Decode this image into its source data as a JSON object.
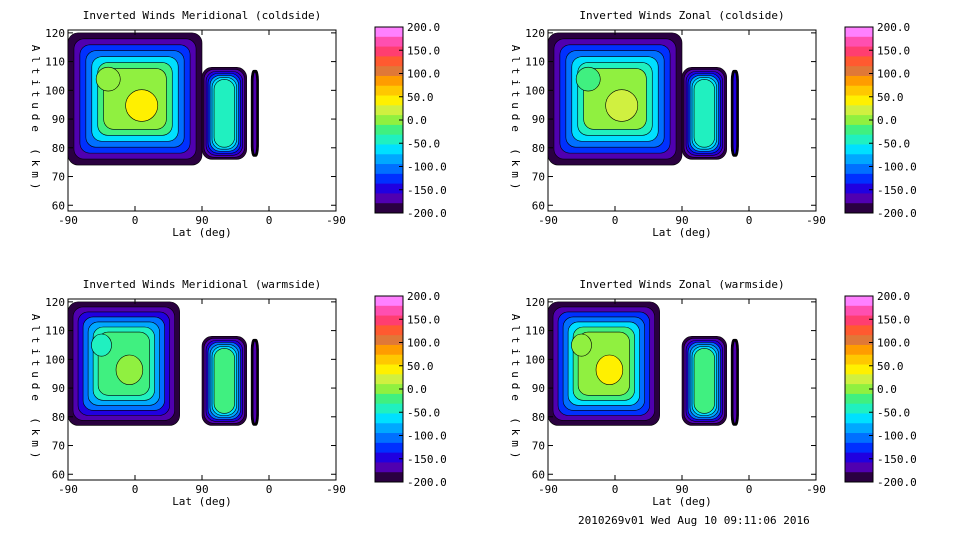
{
  "footer": "2010269v01 Wed Aug 10 09:11:06 2016",
  "colorbar": {
    "labels": [
      "200.0",
      "150.0",
      "100.0",
      "50.0",
      "0.0",
      "-50.0",
      "-100.0",
      "-150.0",
      "-200.0"
    ],
    "colors": [
      "#ff80ff",
      "#ff4fb0",
      "#ff3e70",
      "#ff5a30",
      "#e07838",
      "#ff9c00",
      "#ffc800",
      "#fff000",
      "#d0f040",
      "#90f040",
      "#40f080",
      "#20f0c0",
      "#00e0ff",
      "#00a8ff",
      "#0070ff",
      "#0030ff",
      "#2000e0",
      "#5000b0",
      "#2a0040"
    ]
  },
  "chart_data": [
    {
      "type": "heatmap",
      "title": "Inverted Winds Meridional (coldside)",
      "xlabel": "Lat (deg)",
      "ylabel": "Altitude (km)",
      "x_ticks": [
        "-90",
        "0",
        "90",
        "0",
        "-90"
      ],
      "y_ticks": [
        "120",
        "110",
        "100",
        "90",
        "80",
        "70",
        "60"
      ],
      "ylim": [
        58,
        121
      ],
      "zlim": [
        -200,
        200
      ],
      "regions": [
        {
          "name": "",
          "lat_range": [
            -90,
            90
          ],
          "alt_range": [
            74,
            120
          ],
          "mean_value": 10
        },
        {
          "name": "",
          "lat_range": [
            0,
            -60
          ],
          "alt_range": [
            76,
            108
          ],
          "mean_value": -40
        },
        {
          "name": "",
          "lat_range": [
            -66,
            -76
          ],
          "alt_range": [
            77,
            107
          ],
          "mean_value": -160
        }
      ]
    },
    {
      "type": "heatmap",
      "title": "Inverted Winds Zonal (coldside)",
      "xlabel": "Lat (deg)",
      "ylabel": "Altitude (km)",
      "x_ticks": [
        "-90",
        "0",
        "90",
        "0",
        "-90"
      ],
      "y_ticks": [
        "120",
        "110",
        "100",
        "90",
        "80",
        "70",
        "60"
      ],
      "ylim": [
        58,
        121
      ],
      "zlim": [
        -200,
        200
      ],
      "regions": [
        {
          "name": "",
          "lat_range": [
            -90,
            90
          ],
          "alt_range": [
            74,
            120
          ],
          "mean_value": -10
        },
        {
          "name": "",
          "lat_range": [
            0,
            -60
          ],
          "alt_range": [
            76,
            108
          ],
          "mean_value": -40
        },
        {
          "name": "",
          "lat_range": [
            -66,
            -76
          ],
          "alt_range": [
            77,
            107
          ],
          "mean_value": -150
        }
      ]
    },
    {
      "type": "heatmap",
      "title": "Inverted Winds Meridional (warmside)",
      "xlabel": "Lat (deg)",
      "ylabel": "Altitude (km)",
      "x_ticks": [
        "-90",
        "0",
        "90",
        "0",
        "-90"
      ],
      "y_ticks": [
        "120",
        "110",
        "100",
        "90",
        "80",
        "70",
        "60"
      ],
      "ylim": [
        58,
        121
      ],
      "zlim": [
        -200,
        200
      ],
      "regions": [
        {
          "name": "",
          "lat_range": [
            -90,
            60
          ],
          "alt_range": [
            77,
            120
          ],
          "mean_value": -20
        },
        {
          "name": "",
          "lat_range": [
            0,
            -60
          ],
          "alt_range": [
            77,
            108
          ],
          "mean_value": -30
        },
        {
          "name": "",
          "lat_range": [
            -66,
            -76
          ],
          "alt_range": [
            77,
            107
          ],
          "mean_value": -160
        }
      ]
    },
    {
      "type": "heatmap",
      "title": "Inverted Winds Zonal (warmside)",
      "xlabel": "Lat (deg)",
      "ylabel": "Altitude (km)",
      "x_ticks": [
        "-90",
        "0",
        "90",
        "0",
        "-90"
      ],
      "y_ticks": [
        "120",
        "110",
        "100",
        "90",
        "80",
        "70",
        "60"
      ],
      "ylim": [
        58,
        121
      ],
      "zlim": [
        -200,
        200
      ],
      "regions": [
        {
          "name": "",
          "lat_range": [
            -90,
            60
          ],
          "alt_range": [
            77,
            120
          ],
          "mean_value": 10
        },
        {
          "name": "",
          "lat_range": [
            0,
            -60
          ],
          "alt_range": [
            77,
            108
          ],
          "mean_value": -30
        },
        {
          "name": "",
          "lat_range": [
            -66,
            -76
          ],
          "alt_range": [
            77,
            107
          ],
          "mean_value": -160
        }
      ]
    }
  ]
}
